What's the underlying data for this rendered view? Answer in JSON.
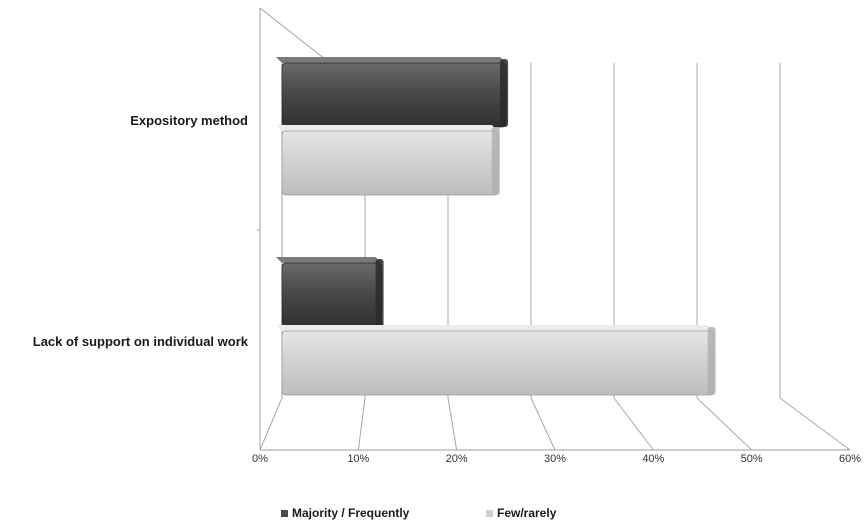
{
  "chart_data": {
    "type": "bar",
    "orientation": "horizontal",
    "style": "3d-clustered",
    "categories": [
      "Expository method",
      "Lack of support on individual work"
    ],
    "series": [
      {
        "name": "Majority / Frequently",
        "values": [
          27,
          12
        ],
        "color": "#4a4a4a"
      },
      {
        "name": "Few/rarely",
        "values": [
          26,
          52
        ],
        "color": "#cfcfcf"
      }
    ],
    "x_ticks": [
      "0%",
      "10%",
      "20%",
      "30%",
      "40%",
      "50%",
      "60%"
    ],
    "xlim": [
      0,
      60
    ],
    "grid": true,
    "legend_position": "bottom"
  }
}
